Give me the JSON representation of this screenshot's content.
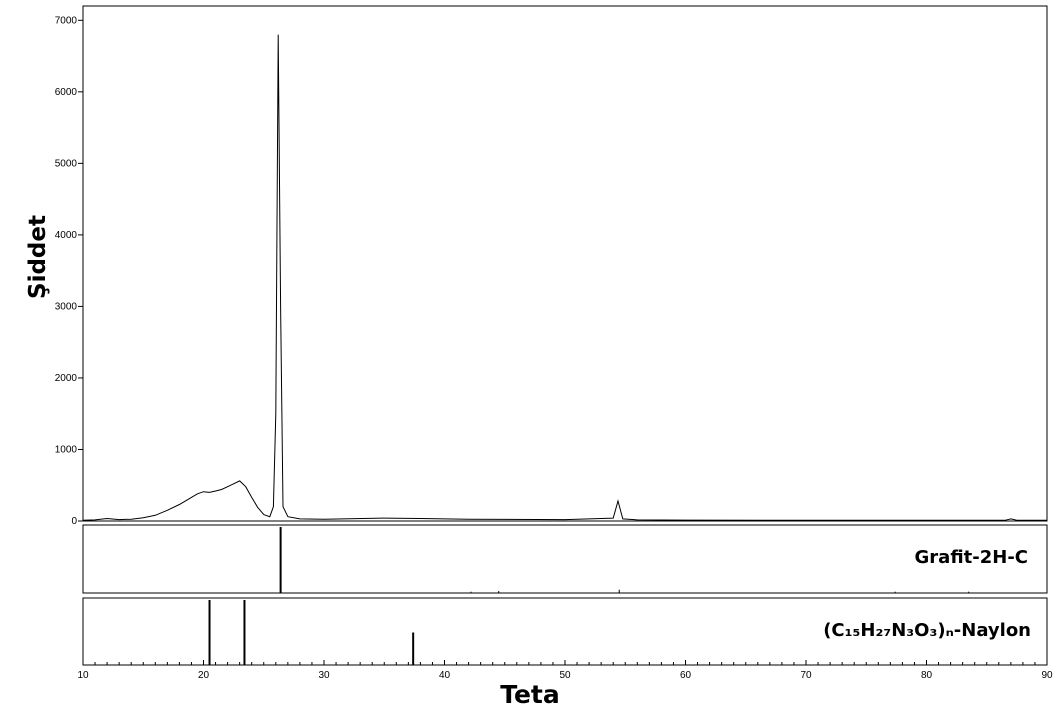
{
  "chart_data": {
    "type": "line",
    "title": "",
    "xlabel": "Teta",
    "ylabel": "Şiddet",
    "xlim": [
      10,
      90
    ],
    "ylim": [
      0,
      7200
    ],
    "x_ticks": [
      "10",
      "20",
      "30",
      "40",
      "50",
      "60",
      "70",
      "80",
      "90"
    ],
    "y_ticks": [
      "0",
      "1000",
      "2000",
      "3000",
      "4000",
      "5000",
      "6000",
      "7000"
    ],
    "grid": false,
    "series": [
      {
        "x": [
          10,
          11,
          12,
          13,
          14,
          15,
          16,
          17,
          18,
          19,
          19.5,
          20,
          20.5,
          21,
          21.5,
          22,
          22.5,
          23,
          23.5,
          24,
          24.5,
          25,
          25.5,
          25.8,
          26.0,
          26.2,
          26.4,
          26.6,
          27.0,
          28,
          30,
          35,
          38,
          42,
          50,
          54.0,
          54.4,
          54.8,
          56,
          60,
          70,
          80,
          86.5,
          87,
          87.5,
          90
        ],
        "y": [
          10,
          15,
          35,
          20,
          25,
          45,
          80,
          150,
          230,
          330,
          380,
          410,
          400,
          420,
          440,
          480,
          520,
          560,
          480,
          330,
          190,
          90,
          60,
          200,
          1500,
          6800,
          3000,
          200,
          60,
          30,
          25,
          40,
          35,
          25,
          20,
          40,
          280,
          30,
          15,
          12,
          10,
          10,
          10,
          30,
          10,
          10
        ]
      }
    ],
    "reference_panels": [
      {
        "label": "Grafit-2H-C",
        "lines": [
          {
            "x": 26.4,
            "intensity": 1.0
          },
          {
            "x": 42.2,
            "intensity": 0.02
          },
          {
            "x": 44.5,
            "intensity": 0.03
          },
          {
            "x": 54.5,
            "intensity": 0.05
          },
          {
            "x": 77.4,
            "intensity": 0.02
          },
          {
            "x": 83.5,
            "intensity": 0.02
          }
        ]
      },
      {
        "label": "(C₁₅H₂₇N₃O₃)ₙ-Naylon",
        "lines": [
          {
            "x": 20.5,
            "intensity": 1.0
          },
          {
            "x": 23.4,
            "intensity": 1.0
          },
          {
            "x": 37.4,
            "intensity": 0.5
          }
        ]
      }
    ]
  }
}
